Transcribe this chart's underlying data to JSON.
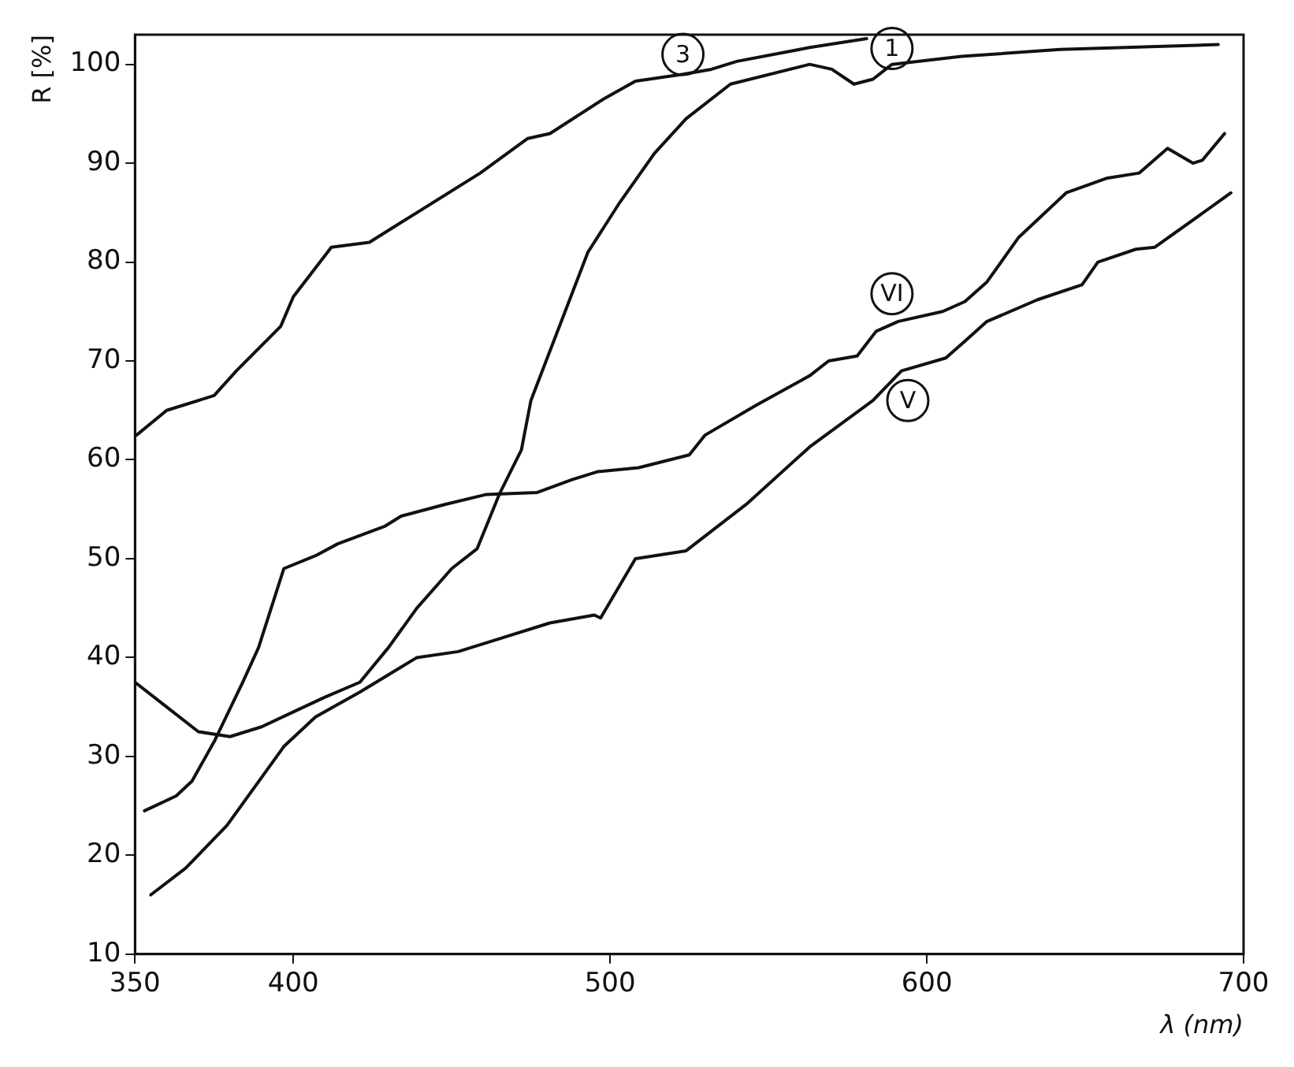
{
  "chart_data": {
    "type": "line",
    "xlabel": "λ (nm)",
    "ylabel": "R [%]",
    "xlim": [
      350,
      700
    ],
    "ylim": [
      10,
      103
    ],
    "xticks": [
      350,
      400,
      500,
      600,
      700
    ],
    "yticks": [
      10,
      20,
      30,
      40,
      50,
      60,
      70,
      80,
      90,
      100
    ],
    "grid": false,
    "legend": false,
    "marker": "none",
    "line_style": "solid",
    "series": [
      {
        "color": "#111111",
        "x": [
          350.5,
          360,
          375,
          382,
          396,
          400,
          412,
          424,
          439,
          459,
          474,
          481,
          498,
          508,
          523,
          532,
          540,
          563,
          581
        ],
        "values": [
          62.5,
          65,
          66.5,
          69,
          73.5,
          76.5,
          81.5,
          82,
          85,
          89,
          92.5,
          93,
          96.5,
          98.3,
          99,
          99.5,
          100.3,
          101.7,
          102.6
        ]
      },
      {
        "color": "#111111",
        "x": [
          350,
          360,
          370,
          380,
          390,
          400,
          410,
          421,
          430,
          439,
          450,
          458,
          465,
          472,
          475,
          481,
          493,
          503,
          514,
          524,
          538,
          563,
          570,
          577,
          583,
          589,
          611,
          642,
          692
        ],
        "values": [
          37.5,
          35,
          32.5,
          32,
          33,
          34.5,
          36,
          37.5,
          41,
          45,
          49,
          51,
          56.5,
          61,
          66,
          71,
          81,
          86,
          91,
          94.5,
          98,
          100,
          99.5,
          98,
          98.5,
          100,
          100.8,
          101.5,
          102
        ]
      },
      {
        "color": "#111111",
        "x": [
          353,
          363,
          368,
          375,
          384,
          389,
          393,
          397,
          407,
          414,
          429,
          434,
          448,
          461,
          477,
          488,
          496,
          509,
          525,
          530,
          546,
          563,
          569,
          578,
          584,
          591,
          605,
          612,
          619,
          629,
          644,
          657,
          667,
          676,
          684,
          687,
          694
        ],
        "values": [
          24.5,
          26,
          27.5,
          31.5,
          37.5,
          41,
          45,
          49,
          50.3,
          51.5,
          53.3,
          54.3,
          55.5,
          56.5,
          56.7,
          58,
          58.8,
          59.2,
          60.5,
          62.5,
          65.5,
          68.5,
          70,
          70.5,
          73,
          74,
          75,
          76,
          78,
          82.5,
          87,
          88.5,
          89,
          91.5,
          90,
          90.3,
          93
        ]
      },
      {
        "color": "#111111",
        "x": [
          355,
          366,
          379,
          397,
          407,
          421,
          439,
          452,
          464,
          481,
          495,
          497,
          508,
          524,
          543,
          563,
          583,
          592,
          606,
          612,
          619,
          635,
          649,
          654,
          666,
          672,
          696
        ],
        "values": [
          16,
          18.7,
          23,
          31,
          34,
          36.5,
          40,
          40.6,
          41.8,
          43.5,
          44.3,
          44,
          50,
          50.8,
          55.5,
          61.3,
          66,
          69,
          70.3,
          72,
          74,
          76.2,
          77.7,
          80,
          81.3,
          81.5,
          87
        ]
      }
    ],
    "annotations": [
      {
        "text": "3",
        "x": 523,
        "y": 101
      },
      {
        "text": "1",
        "x": 589,
        "y": 101.6
      },
      {
        "text": "VI",
        "x": 589,
        "y": 76.8
      },
      {
        "text": "V",
        "x": 594,
        "y": 66
      }
    ]
  }
}
